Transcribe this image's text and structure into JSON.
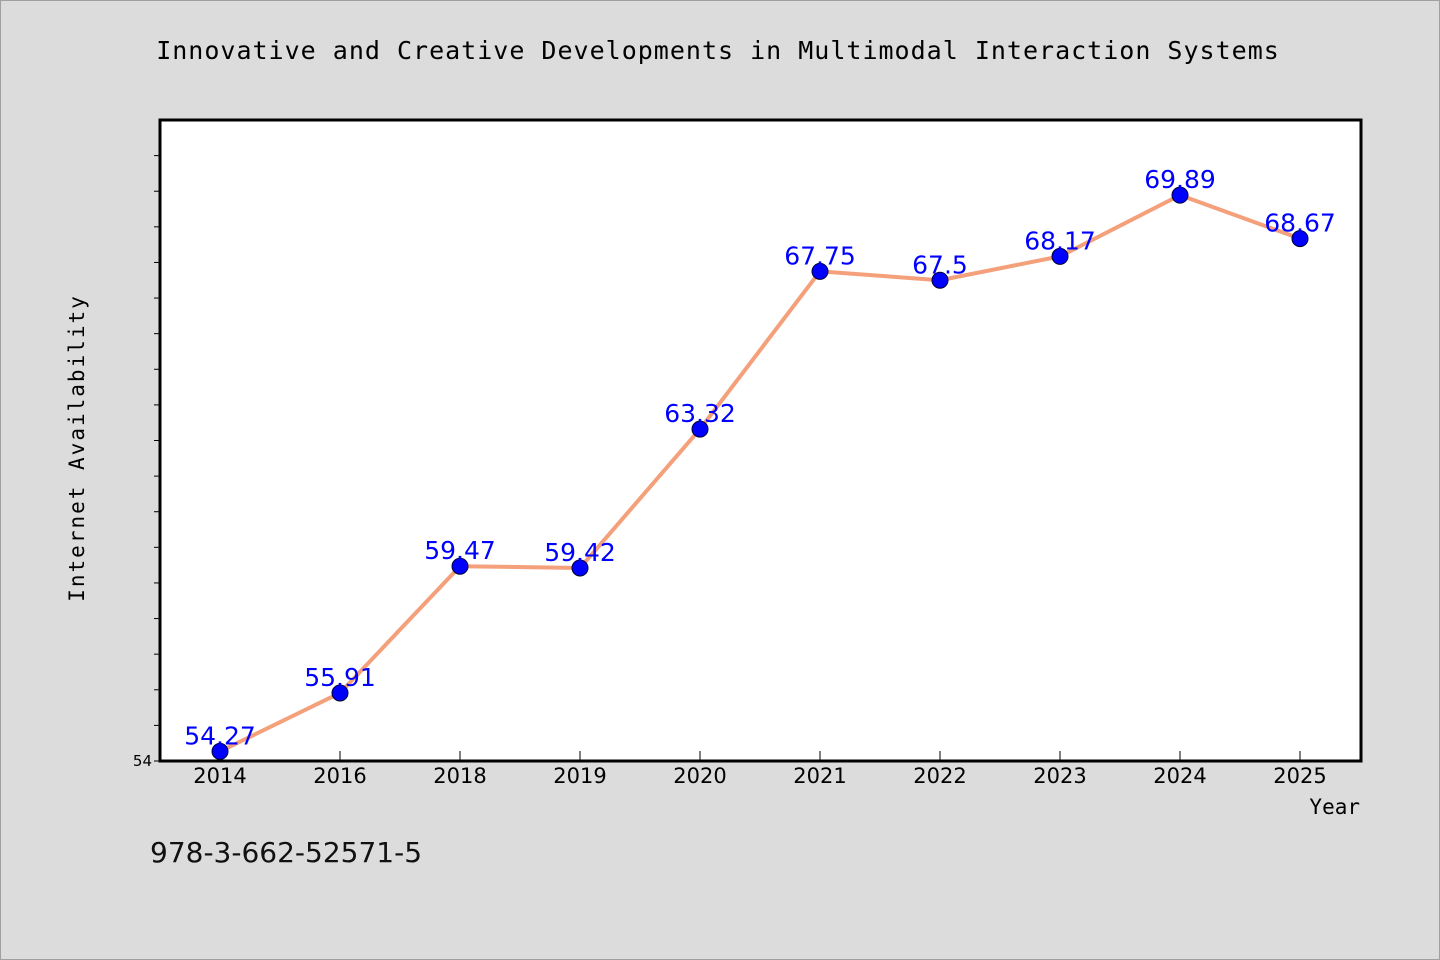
{
  "footer_code": "978-3-662-52571-5",
  "colors": {
    "background": "#dcdcdc",
    "plot_background": "#ffffff",
    "line": "#f4a07a",
    "marker": "#0000ff",
    "data_label": "#0000ff"
  },
  "chart_data": {
    "type": "line",
    "title": "Innovative and Creative Developments in Multimodal Interaction Systems",
    "xlabel": "Year",
    "ylabel": "Internet Availability",
    "categories": [
      "2014",
      "2016",
      "2018",
      "2019",
      "2020",
      "2021",
      "2022",
      "2023",
      "2024",
      "2025"
    ],
    "values": [
      54.27,
      55.91,
      59.47,
      59.42,
      63.32,
      67.75,
      67.5,
      68.17,
      69.89,
      68.67
    ],
    "data_labels": [
      "54.27",
      "55.91",
      "59.47",
      "59.42",
      "63.32",
      "67.75",
      "67.5",
      "68.17",
      "69.89",
      "68.67"
    ],
    "ylim": [
      54,
      72
    ],
    "y_tick_step": 1,
    "y_tick_labels_shown": [
      "54"
    ],
    "grid": false,
    "legend": "none"
  }
}
